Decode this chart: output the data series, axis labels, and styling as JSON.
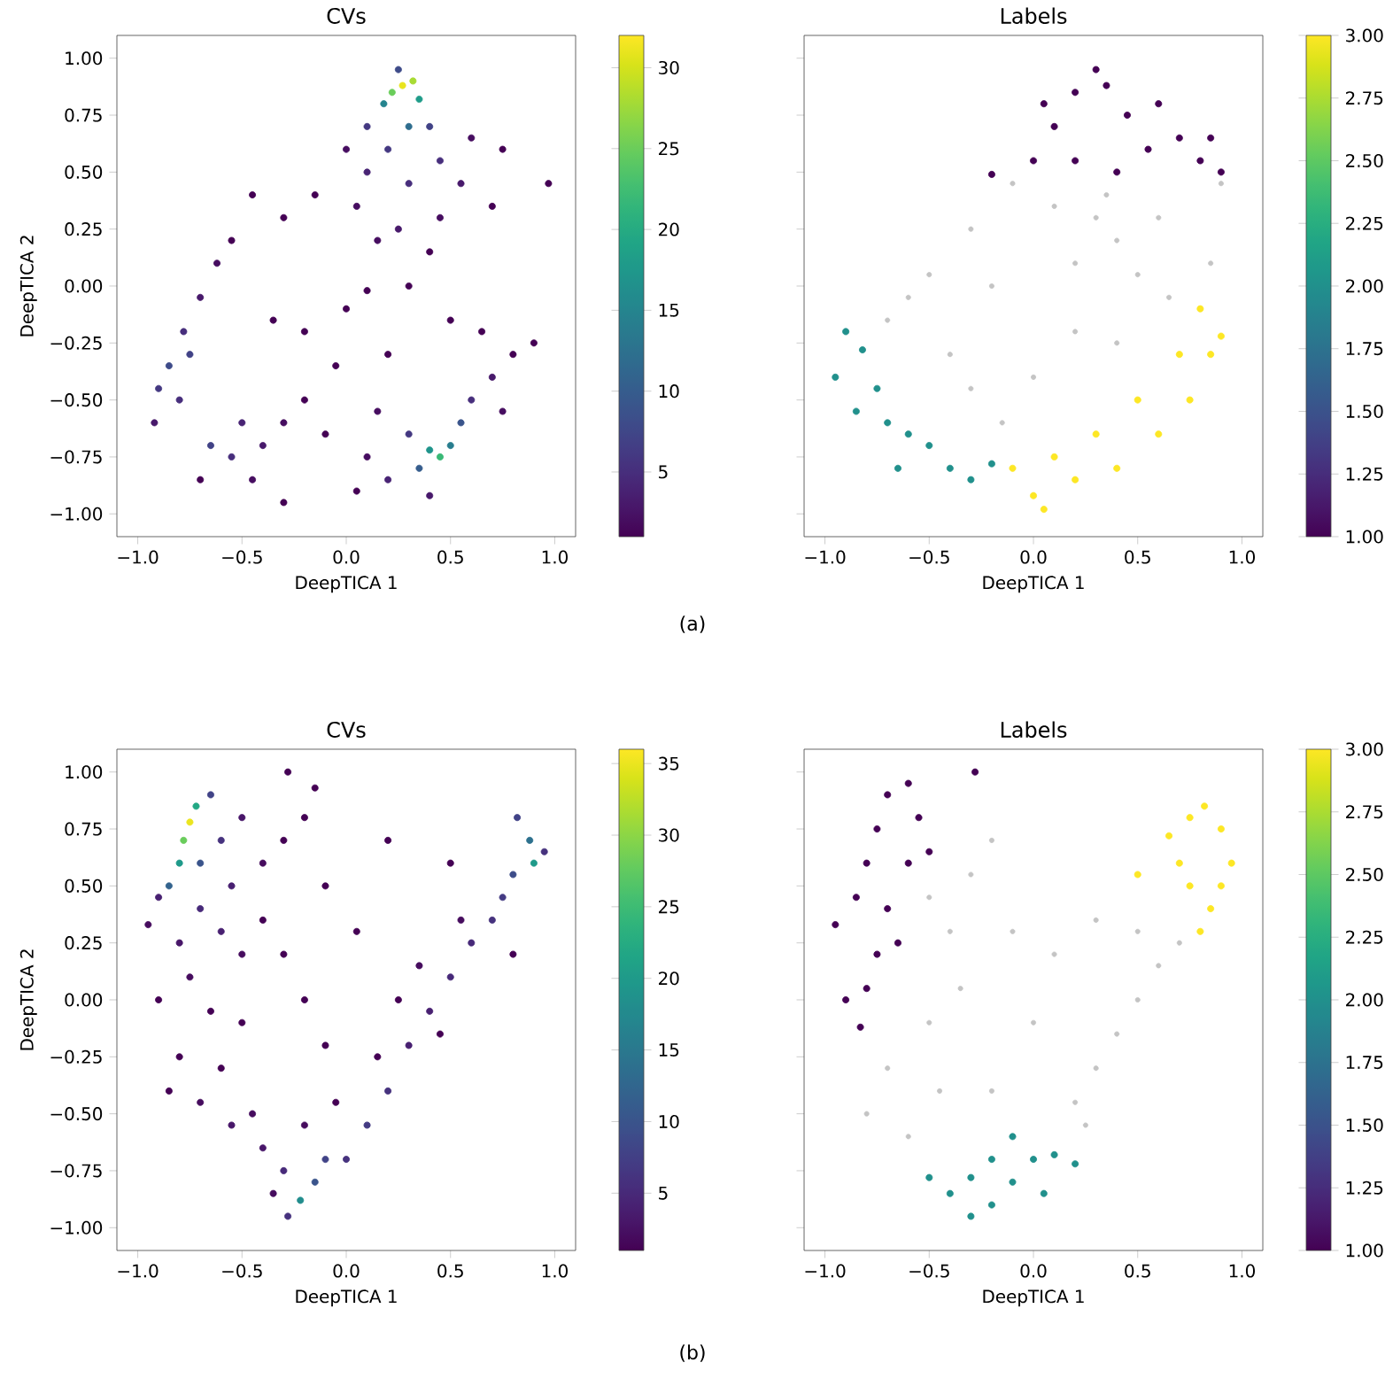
{
  "chart_data": [
    {
      "type": "scatter",
      "title": "CVs",
      "xlabel": "DeepTICA 1",
      "ylabel": "DeepTICA 2",
      "marker": "circle",
      "annotations": [
        "(a)"
      ],
      "xlim": [
        -1.1,
        1.1
      ],
      "ylim": [
        -1.1,
        1.1
      ],
      "xticks": [
        {
          "value": -1,
          "label": "−1.0"
        },
        {
          "value": -0.5,
          "label": "−0.5"
        },
        {
          "value": 0,
          "label": "0.0"
        },
        {
          "value": 0.5,
          "label": "0.5"
        },
        {
          "value": 1,
          "label": "1.0"
        }
      ],
      "yticks": [
        {
          "value": -1,
          "label": "−1.00"
        },
        {
          "value": -0.75,
          "label": "−0.75"
        },
        {
          "value": -0.5,
          "label": "−0.50"
        },
        {
          "value": -0.25,
          "label": "−0.25"
        },
        {
          "value": 0,
          "label": "0.00"
        },
        {
          "value": 0.25,
          "label": "0.25"
        },
        {
          "value": 0.5,
          "label": "0.50"
        },
        {
          "value": 0.75,
          "label": "0.75"
        },
        {
          "value": 1,
          "label": "1.00"
        }
      ],
      "clim": [
        1,
        32
      ],
      "cticks": [
        5,
        10,
        15,
        20,
        25,
        30
      ],
      "x": [
        0.27,
        0.22,
        0.32,
        0.18,
        0.35,
        0.25,
        0.1,
        0.4,
        0.3,
        0.2,
        0.45,
        0.1,
        0.3,
        0.55,
        0.6,
        0.05,
        0.25,
        0.45,
        0.7,
        0.75,
        0.97,
        0.0,
        0.15,
        0.4,
        -0.15,
        -0.3,
        -0.45,
        -0.55,
        -0.62,
        -0.7,
        -0.78,
        -0.85,
        -0.9,
        -0.92,
        -0.8,
        -0.75,
        -0.65,
        -0.55,
        -0.5,
        -0.4,
        -0.3,
        -0.45,
        -0.7,
        -0.3,
        -0.2,
        -0.1,
        0.45,
        0.4,
        0.5,
        0.35,
        0.55,
        0.3,
        0.6,
        0.2,
        0.7,
        0.1,
        0.15,
        0.05,
        0.8,
        0.9,
        0.65,
        0.4,
        0.75,
        -0.2,
        0.0,
        0.2,
        -0.35,
        0.5,
        0.3,
        -0.05,
        0.1
      ],
      "values": [
        0.88,
        0.85,
        0.9,
        0.8,
        0.82,
        0.95,
        0.7,
        0.7,
        0.7,
        0.6,
        0.55,
        0.5,
        0.45,
        0.45,
        0.65,
        0.35,
        0.25,
        0.3,
        0.35,
        0.6,
        0.45,
        0.6,
        0.2,
        0.15,
        0.4,
        0.3,
        0.4,
        0.2,
        0.1,
        -0.05,
        -0.2,
        -0.35,
        -0.45,
        -0.6,
        -0.5,
        -0.3,
        -0.7,
        -0.75,
        -0.6,
        -0.7,
        -0.6,
        -0.85,
        -0.85,
        -0.95,
        -0.5,
        -0.65,
        -0.75,
        -0.72,
        -0.7,
        -0.8,
        -0.6,
        -0.65,
        -0.5,
        -0.85,
        -0.4,
        -0.75,
        -0.55,
        -0.9,
        -0.3,
        -0.25,
        -0.2,
        -0.92,
        -0.55,
        -0.2,
        -0.1,
        -0.3,
        -0.15,
        -0.15,
        0.0,
        -0.35,
        -0.02
      ],
      "cvalues": [
        31,
        25,
        28,
        15,
        18,
        8,
        6,
        7,
        12,
        6,
        5,
        4,
        5,
        3,
        2,
        2,
        3,
        2,
        1,
        1,
        1,
        2,
        2,
        1,
        1,
        1,
        1,
        1,
        2,
        3,
        5,
        8,
        6,
        3,
        5,
        7,
        7,
        5,
        4,
        3,
        2,
        2,
        1,
        1,
        1,
        1,
        22,
        17,
        14,
        10,
        9,
        6,
        5,
        4,
        3,
        2,
        2,
        1,
        1,
        1,
        1,
        3,
        2,
        1,
        1,
        1,
        1,
        1,
        1,
        1,
        1
      ]
    },
    {
      "type": "scatter",
      "title": "Labels",
      "xlabel": "DeepTICA 1",
      "marker": "circle",
      "tick_labels": "x",
      "xlim": [
        -1.1,
        1.1
      ],
      "ylim": [
        -1.1,
        1.1
      ],
      "xticks": [
        {
          "value": -1,
          "label": "−1.0"
        },
        {
          "value": -0.5,
          "label": "−0.5"
        },
        {
          "value": 0,
          "label": "0.0"
        },
        {
          "value": 0.5,
          "label": "0.5"
        },
        {
          "value": 1,
          "label": "1.0"
        }
      ],
      "yticks": [
        -1,
        -0.75,
        -0.5,
        -0.25,
        0,
        0.25,
        0.5,
        0.75,
        1
      ],
      "clim": [
        1,
        3
      ],
      "cticks": [
        {
          "value": 1,
          "label": "1.00"
        },
        {
          "value": 1.25,
          "label": "1.25"
        },
        {
          "value": 1.5,
          "label": "1.50"
        },
        {
          "value": 1.75,
          "label": "1.75"
        },
        {
          "value": 2,
          "label": "2.00"
        },
        {
          "value": 2.25,
          "label": "2.25"
        },
        {
          "value": 2.5,
          "label": "2.50"
        },
        {
          "value": 2.75,
          "label": "2.75"
        },
        {
          "value": 3,
          "label": "3.00"
        }
      ],
      "series": [
        {
          "color": "#c4c4c4",
          "x": [
            -0.1,
            0.3,
            0.4,
            0.2,
            0.6,
            0.9,
            0.5,
            -0.3,
            -0.5,
            -0.6,
            -0.7,
            -0.4,
            -0.3,
            -0.15,
            0.0,
            0.2,
            0.4,
            0.65,
            0.85,
            -0.2,
            0.1,
            0.35
          ],
          "values": [
            0.45,
            0.3,
            0.2,
            0.1,
            0.3,
            0.45,
            0.05,
            0.25,
            0.05,
            -0.05,
            -0.15,
            -0.3,
            -0.45,
            -0.6,
            -0.4,
            -0.2,
            -0.25,
            -0.05,
            0.1,
            0.0,
            0.35,
            0.4
          ]
        },
        {
          "x": [
            -0.2,
            0.0,
            0.1,
            0.2,
            0.3,
            0.35,
            0.45,
            0.55,
            0.7,
            0.8,
            0.9,
            0.2,
            0.4,
            0.05,
            0.6,
            0.85
          ],
          "values": [
            0.49,
            0.55,
            0.7,
            0.85,
            0.95,
            0.88,
            0.75,
            0.6,
            0.65,
            0.55,
            0.5,
            0.55,
            0.5,
            0.8,
            0.8,
            0.65
          ],
          "cvalues": [
            1,
            1,
            1,
            1,
            1,
            1,
            1,
            1,
            1,
            1,
            1,
            1,
            1,
            1,
            1,
            1
          ]
        },
        {
          "x": [
            -0.9,
            -0.95,
            -0.85,
            -0.75,
            -0.7,
            -0.6,
            -0.5,
            -0.4,
            -0.3,
            -0.2,
            -0.82,
            -0.65
          ],
          "values": [
            -0.2,
            -0.4,
            -0.55,
            -0.45,
            -0.6,
            -0.65,
            -0.7,
            -0.8,
            -0.85,
            -0.78,
            -0.28,
            -0.8
          ],
          "cvalues": [
            2,
            2,
            2,
            2,
            2,
            2,
            2,
            2,
            2,
            2,
            2,
            2
          ]
        },
        {
          "x": [
            -0.1,
            0.0,
            0.2,
            0.4,
            0.6,
            0.75,
            0.85,
            0.9,
            0.8,
            0.5,
            0.3,
            0.1,
            0.7,
            0.05
          ],
          "values": [
            -0.8,
            -0.92,
            -0.85,
            -0.8,
            -0.65,
            -0.5,
            -0.3,
            -0.22,
            -0.1,
            -0.5,
            -0.65,
            -0.75,
            -0.3,
            -0.98
          ],
          "cvalues": [
            3,
            3,
            3,
            3,
            3,
            3,
            3,
            3,
            3,
            3,
            3,
            3,
            3,
            3
          ]
        }
      ]
    },
    {
      "type": "scatter",
      "title": "CVs",
      "xlabel": "DeepTICA 1",
      "ylabel": "DeepTICA 2",
      "marker": "circle",
      "annotations": [
        "(b)"
      ],
      "xlim": [
        -1.1,
        1.1
      ],
      "ylim": [
        -1.1,
        1.1
      ],
      "xticks": [
        {
          "value": -1,
          "label": "−1.0"
        },
        {
          "value": -0.5,
          "label": "−0.5"
        },
        {
          "value": 0,
          "label": "0.0"
        },
        {
          "value": 0.5,
          "label": "0.5"
        },
        {
          "value": 1,
          "label": "1.0"
        }
      ],
      "yticks": [
        {
          "value": -1,
          "label": "−1.00"
        },
        {
          "value": -0.75,
          "label": "−0.75"
        },
        {
          "value": -0.5,
          "label": "−0.50"
        },
        {
          "value": -0.25,
          "label": "−0.25"
        },
        {
          "value": 0,
          "label": "0.00"
        },
        {
          "value": 0.25,
          "label": "0.25"
        },
        {
          "value": 0.5,
          "label": "0.50"
        },
        {
          "value": 0.75,
          "label": "0.75"
        },
        {
          "value": 1,
          "label": "1.00"
        }
      ],
      "clim": [
        1,
        36
      ],
      "cticks": [
        5,
        10,
        15,
        20,
        25,
        30,
        35
      ],
      "x": [
        -0.75,
        -0.78,
        -0.72,
        -0.8,
        -0.85,
        -0.7,
        -0.65,
        -0.6,
        -0.7,
        -0.9,
        -0.95,
        -0.55,
        -0.5,
        -0.6,
        -0.8,
        -0.75,
        -0.5,
        -0.4,
        -0.3,
        -0.2,
        -0.1,
        -0.4,
        -0.3,
        -0.65,
        -0.5,
        -0.9,
        -0.28,
        -0.15,
        0.2,
        0.05,
        0.9,
        0.88,
        0.82,
        0.95,
        0.8,
        0.75,
        0.7,
        0.6,
        0.5,
        0.4,
        0.3,
        0.2,
        0.1,
        0.0,
        0.55,
        0.35,
        0.45,
        0.25,
        0.8,
        0.5,
        0.15,
        -0.22,
        -0.28,
        -0.15,
        -0.1,
        -0.3,
        -0.4,
        -0.55,
        -0.7,
        -0.85,
        -0.8,
        -0.6,
        -0.45,
        -0.2,
        -0.05,
        -0.35,
        -0.1,
        -0.2
      ],
      "values": [
        0.78,
        0.7,
        0.85,
        0.6,
        0.5,
        0.6,
        0.9,
        0.7,
        0.4,
        0.45,
        0.33,
        0.5,
        0.8,
        0.3,
        0.25,
        0.1,
        0.2,
        0.6,
        0.7,
        0.8,
        0.5,
        0.35,
        0.2,
        -0.05,
        -0.1,
        0.0,
        1.0,
        0.93,
        0.7,
        0.3,
        0.6,
        0.7,
        0.8,
        0.65,
        0.55,
        0.45,
        0.35,
        0.25,
        0.1,
        -0.05,
        -0.2,
        -0.4,
        -0.55,
        -0.7,
        0.35,
        0.15,
        -0.15,
        0.0,
        0.2,
        0.6,
        -0.25,
        -0.88,
        -0.95,
        -0.8,
        -0.7,
        -0.75,
        -0.65,
        -0.55,
        -0.45,
        -0.4,
        -0.25,
        -0.3,
        -0.5,
        -0.55,
        -0.45,
        -0.85,
        -0.2,
        0.0
      ],
      "cvalues": [
        35,
        28,
        22,
        20,
        12,
        10,
        8,
        6,
        5,
        4,
        2,
        4,
        3,
        4,
        3,
        2,
        2,
        2,
        1,
        1,
        1,
        1,
        1,
        1,
        1,
        1,
        1,
        1,
        1,
        1,
        20,
        14,
        8,
        6,
        9,
        7,
        6,
        5,
        5,
        4,
        4,
        6,
        7,
        6,
        2,
        2,
        1,
        1,
        1,
        1,
        1,
        18,
        6,
        10,
        8,
        5,
        3,
        3,
        2,
        1,
        1,
        1,
        2,
        2,
        1,
        2,
        1,
        1
      ]
    },
    {
      "type": "scatter",
      "title": "Labels",
      "xlabel": "DeepTICA 1",
      "marker": "circle",
      "tick_labels": "x",
      "xlim": [
        -1.1,
        1.1
      ],
      "ylim": [
        -1.1,
        1.1
      ],
      "xticks": [
        {
          "value": -1,
          "label": "−1.0"
        },
        {
          "value": -0.5,
          "label": "−0.5"
        },
        {
          "value": 0,
          "label": "0.0"
        },
        {
          "value": 0.5,
          "label": "0.5"
        },
        {
          "value": 1,
          "label": "1.0"
        }
      ],
      "yticks": [
        -1,
        -0.75,
        -0.5,
        -0.25,
        0,
        0.25,
        0.5,
        0.75,
        1
      ],
      "clim": [
        1,
        3
      ],
      "cticks": [
        {
          "value": 1,
          "label": "1.00"
        },
        {
          "value": 1.25,
          "label": "1.25"
        },
        {
          "value": 1.5,
          "label": "1.50"
        },
        {
          "value": 1.75,
          "label": "1.75"
        },
        {
          "value": 2,
          "label": "2.00"
        },
        {
          "value": 2.25,
          "label": "2.25"
        },
        {
          "value": 2.5,
          "label": "2.50"
        },
        {
          "value": 2.75,
          "label": "2.75"
        },
        {
          "value": 3,
          "label": "3.00"
        }
      ],
      "series": [
        {
          "color": "#c4c4c4",
          "x": [
            -0.5,
            -0.4,
            -0.3,
            -0.2,
            -0.1,
            -0.35,
            -0.5,
            -0.7,
            -0.8,
            -0.6,
            -0.45,
            -0.2,
            0.0,
            0.2,
            0.3,
            0.4,
            0.5,
            0.6,
            0.7,
            0.1,
            0.3,
            0.5,
            0.25
          ],
          "values": [
            0.45,
            0.3,
            0.55,
            0.7,
            0.3,
            0.05,
            -0.1,
            -0.3,
            -0.5,
            -0.6,
            -0.4,
            -0.4,
            -0.1,
            -0.45,
            -0.3,
            -0.15,
            0.0,
            0.15,
            0.25,
            0.2,
            0.35,
            0.3,
            -0.55
          ]
        },
        {
          "x": [
            -0.95,
            -0.85,
            -0.8,
            -0.75,
            -0.7,
            -0.6,
            -0.55,
            -0.6,
            -0.7,
            -0.75,
            -0.8,
            -0.9,
            -0.5,
            -0.65,
            -0.28,
            -0.83
          ],
          "values": [
            0.33,
            0.45,
            0.6,
            0.75,
            0.9,
            0.95,
            0.8,
            0.6,
            0.4,
            0.2,
            0.05,
            0.0,
            0.65,
            0.25,
            1.0,
            -0.12
          ],
          "cvalues": [
            1,
            1,
            1,
            1,
            1,
            1,
            1,
            1,
            1,
            1,
            1,
            1,
            1,
            1,
            1,
            1
          ]
        },
        {
          "x": [
            0.7,
            0.75,
            0.82,
            0.9,
            0.95,
            0.85,
            0.8,
            0.75,
            0.9,
            0.5,
            0.65
          ],
          "values": [
            0.6,
            0.8,
            0.85,
            0.75,
            0.6,
            0.4,
            0.3,
            0.5,
            0.5,
            0.55,
            0.72
          ],
          "cvalues": [
            3,
            3,
            3,
            3,
            3,
            3,
            3,
            3,
            3,
            3,
            3
          ]
        },
        {
          "x": [
            -0.5,
            -0.4,
            -0.3,
            -0.2,
            -0.1,
            0.0,
            0.1,
            0.2,
            -0.1,
            -0.2,
            -0.3,
            0.05
          ],
          "values": [
            -0.78,
            -0.85,
            -0.95,
            -0.9,
            -0.8,
            -0.7,
            -0.68,
            -0.72,
            -0.6,
            -0.7,
            -0.78,
            -0.85
          ],
          "cvalues": [
            2,
            2,
            2,
            2,
            2,
            2,
            2,
            2,
            2,
            2,
            2,
            2
          ]
        }
      ]
    }
  ]
}
